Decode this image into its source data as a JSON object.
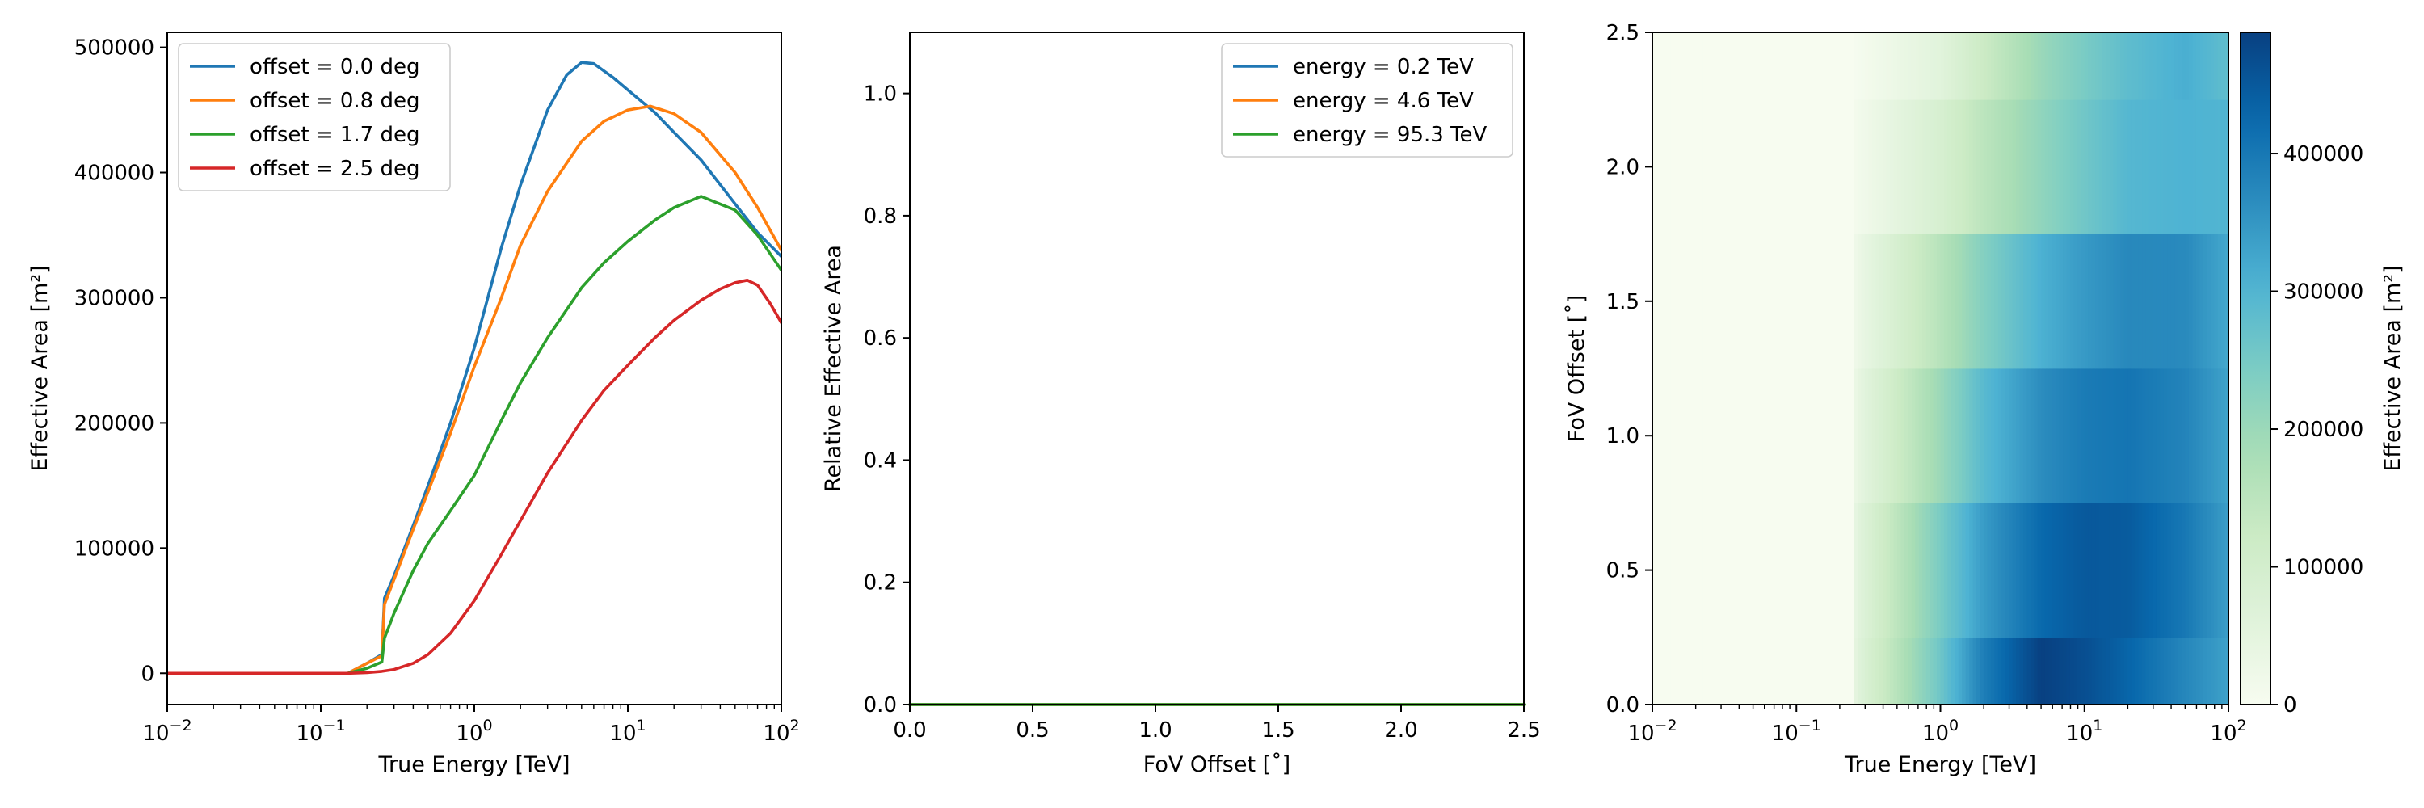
{
  "chart_data": [
    {
      "type": "line",
      "xscale": "log",
      "xlim": [
        0.01,
        100
      ],
      "ylim": [
        -25000,
        512000
      ],
      "xlabel": "True Energy [TeV]",
      "ylabel": "Effective Area [m²]",
      "xticks": [
        0.01,
        0.1,
        1,
        10,
        100
      ],
      "xtick_labels": [
        {
          "base": "10",
          "exp": "−2"
        },
        {
          "base": "10",
          "exp": "−1"
        },
        {
          "base": "10",
          "exp": "0"
        },
        {
          "base": "10",
          "exp": "1"
        },
        {
          "base": "10",
          "exp": "2"
        }
      ],
      "yticks": [
        0,
        100000,
        200000,
        300000,
        400000,
        500000
      ],
      "ytick_labels": [
        "0",
        "100000",
        "200000",
        "300000",
        "400000",
        "500000"
      ],
      "legend": "top-left",
      "series": [
        {
          "name": "offset = 0.0 deg",
          "color": "#1f77b4",
          "x": [
            0.01,
            0.1,
            0.15,
            0.2,
            0.25,
            0.26,
            0.3,
            0.4,
            0.5,
            0.7,
            1,
            1.5,
            2,
            3,
            4,
            5,
            6,
            8,
            10,
            15,
            20,
            30,
            50,
            70,
            100
          ],
          "y": [
            0,
            0,
            0,
            8000,
            15000,
            60000,
            78000,
            118000,
            150000,
            200000,
            260000,
            340000,
            390000,
            450000,
            478000,
            488000,
            487000,
            476000,
            466000,
            448000,
            432000,
            410000,
            375000,
            352000,
            333000
          ]
        },
        {
          "name": "offset = 0.8 deg",
          "color": "#ff7f0e",
          "x": [
            0.01,
            0.1,
            0.15,
            0.2,
            0.25,
            0.26,
            0.3,
            0.4,
            0.5,
            0.7,
            1,
            1.5,
            2,
            3,
            5,
            7,
            10,
            14,
            20,
            30,
            50,
            70,
            100
          ],
          "y": [
            0,
            0,
            0,
            8000,
            14000,
            55000,
            75000,
            115000,
            145000,
            192000,
            245000,
            300000,
            342000,
            385000,
            425000,
            441000,
            450000,
            453000,
            447000,
            432000,
            400000,
            372000,
            338000
          ]
        },
        {
          "name": "offset = 1.7 deg",
          "color": "#2ca02c",
          "x": [
            0.01,
            0.1,
            0.15,
            0.2,
            0.25,
            0.26,
            0.3,
            0.4,
            0.5,
            0.7,
            1,
            1.5,
            2,
            3,
            5,
            7,
            10,
            15,
            20,
            30,
            50,
            70,
            100
          ],
          "y": [
            0,
            0,
            0,
            4000,
            9000,
            28000,
            48000,
            82000,
            104000,
            130000,
            158000,
            202000,
            232000,
            268000,
            308000,
            328000,
            345000,
            362000,
            372000,
            381000,
            370000,
            350000,
            322000
          ]
        },
        {
          "name": "offset = 2.5 deg",
          "color": "#d62728",
          "x": [
            0.01,
            0.1,
            0.15,
            0.2,
            0.25,
            0.3,
            0.4,
            0.5,
            0.7,
            1,
            1.5,
            2,
            3,
            5,
            7,
            10,
            15,
            20,
            30,
            40,
            50,
            60,
            70,
            85,
            100
          ],
          "y": [
            0,
            0,
            0,
            500,
            1500,
            3000,
            8000,
            15000,
            32000,
            58000,
            95000,
            122000,
            160000,
            202000,
            226000,
            246000,
            268000,
            282000,
            298000,
            307000,
            312000,
            314000,
            310000,
            295000,
            280000
          ]
        }
      ]
    },
    {
      "type": "line",
      "xlim": [
        0,
        2.5
      ],
      "ylim": [
        0,
        1.1
      ],
      "xlabel": "FoV Offset [˚]",
      "ylabel": "Relative Effective Area",
      "xticks": [
        0,
        0.5,
        1,
        1.5,
        2,
        2.5
      ],
      "xtick_labels": [
        "0.0",
        "0.5",
        "1.0",
        "1.5",
        "2.0",
        "2.5"
      ],
      "yticks": [
        0,
        0.2,
        0.4,
        0.6,
        0.8,
        1
      ],
      "ytick_labels": [
        "0.0",
        "0.2",
        "0.4",
        "0.6",
        "0.8",
        "1.0"
      ],
      "legend": "top-right",
      "series": [
        {
          "name": "energy = 0.2 TeV",
          "color": "#1f77b4",
          "x": [
            0,
            2.5
          ],
          "y": [
            0,
            0
          ]
        },
        {
          "name": "energy = 4.6 TeV",
          "color": "#ff7f0e",
          "x": [
            0,
            2.5
          ],
          "y": [
            0,
            0
          ]
        },
        {
          "name": "energy = 95.3 TeV",
          "color": "#2ca02c",
          "x": [
            0,
            2.5
          ],
          "y": [
            0,
            0
          ]
        }
      ]
    },
    {
      "type": "heatmap",
      "xscale": "log",
      "xlim": [
        0.01,
        100
      ],
      "ylim": [
        0,
        2.5
      ],
      "xlabel": "True Energy [TeV]",
      "ylabel": "FoV Offset [˚]",
      "colorbar_label": "Effective Area [m²]",
      "colormap": "GnBu",
      "color_range": [
        0,
        488000
      ],
      "colorbar_ticks": [
        0,
        100000,
        200000,
        300000,
        400000
      ],
      "colorbar_tick_labels": [
        "0",
        "100000",
        "200000",
        "300000",
        "400000"
      ],
      "xticks": [
        0.01,
        0.1,
        1,
        10,
        100
      ],
      "xtick_labels": [
        {
          "base": "10",
          "exp": "−2"
        },
        {
          "base": "10",
          "exp": "−1"
        },
        {
          "base": "10",
          "exp": "0"
        },
        {
          "base": "10",
          "exp": "1"
        },
        {
          "base": "10",
          "exp": "2"
        }
      ],
      "yticks": [
        0,
        0.5,
        1,
        1.5,
        2,
        2.5
      ],
      "ytick_labels": [
        "0.0",
        "0.5",
        "1.0",
        "1.5",
        "2.0",
        "2.5"
      ],
      "offset_bins": [
        0,
        0.25,
        0.75,
        1.25,
        1.75,
        2.25,
        2.5
      ],
      "energy_knots": [
        0.01,
        0.25,
        0.26,
        1,
        2,
        5,
        10,
        20,
        50,
        100
      ],
      "rows": [
        [
          0,
          0,
          60000,
          260000,
          390000,
          488000,
          466000,
          432000,
          375000,
          333000
        ],
        [
          0,
          0,
          55000,
          245000,
          342000,
          425000,
          450000,
          447000,
          400000,
          338000
        ],
        [
          0,
          0,
          40000,
          200000,
          290000,
          365000,
          395000,
          405000,
          380000,
          330000
        ],
        [
          0,
          0,
          28000,
          158000,
          232000,
          308000,
          345000,
          372000,
          370000,
          322000
        ],
        [
          0,
          0,
          12000,
          90000,
          150000,
          215000,
          258000,
          295000,
          305000,
          300000
        ],
        [
          0,
          0,
          5000,
          58000,
          122000,
          202000,
          246000,
          282000,
          312000,
          280000
        ]
      ]
    }
  ]
}
